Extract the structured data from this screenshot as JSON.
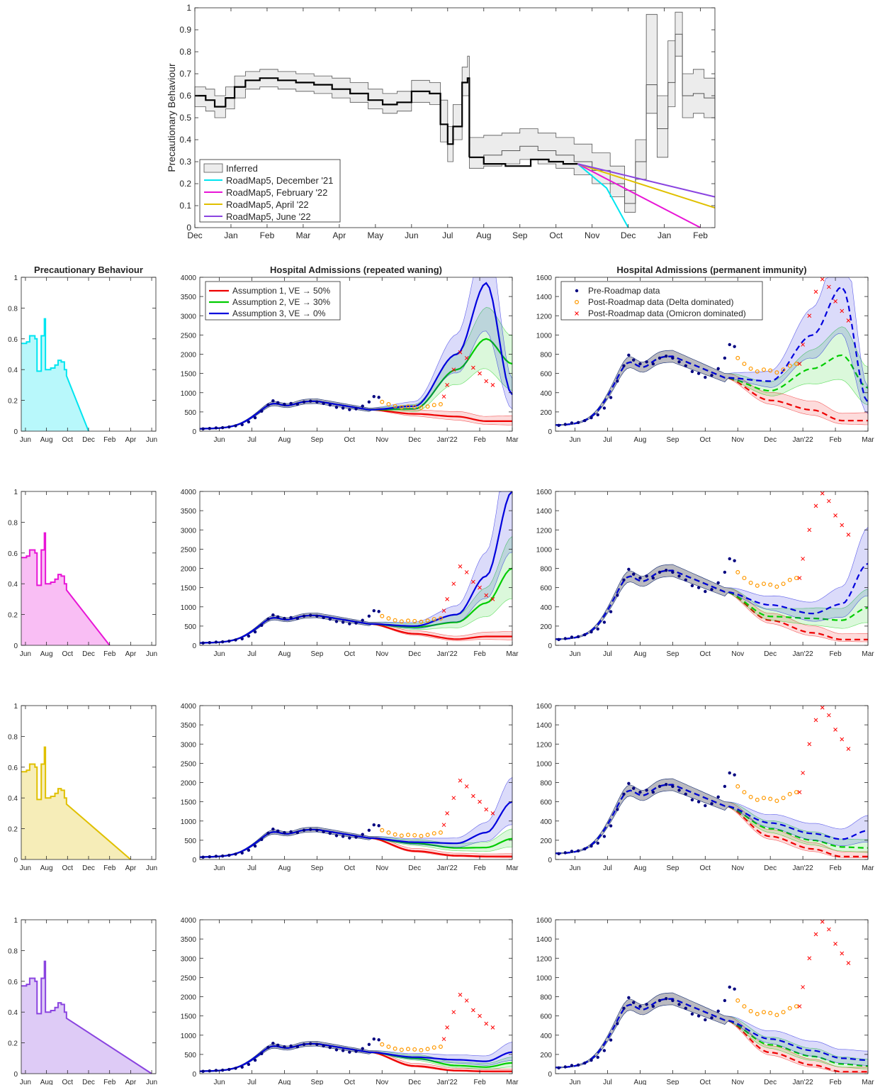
{
  "figure": {
    "colors": {
      "inferred": "#000000",
      "rm_dec": "#00e5f0",
      "rm_feb": "#e815d6",
      "rm_apr": "#e0c000",
      "rm_jun": "#8a44e0",
      "assumption1": "#ee0000",
      "assumption2": "#00cc00",
      "assumption3": "#0000dd",
      "pre_data": "#000080",
      "delta_data": "#ff9900",
      "omicron_data": "#ff0000"
    },
    "column_titles": {
      "behaviour": "Precautionary Behaviour",
      "waning": "Hospital Admissions (repeated waning)",
      "immunity": "Hospital Admissions (permanent immunity)"
    }
  },
  "chart_data": [
    {
      "type": "line",
      "id": "top",
      "ylabel": "Precautionary Behaviour",
      "xlabel": "",
      "ylim": [
        0,
        1
      ],
      "yticks": [
        0,
        0.1,
        0.2,
        0.3,
        0.4,
        0.5,
        0.6,
        0.7,
        0.8,
        0.9,
        1
      ],
      "xticks": [
        "Dec",
        "Jan",
        "Feb",
        "Mar",
        "Apr",
        "May",
        "Jun",
        "Jul",
        "Aug",
        "Sep",
        "Oct",
        "Nov",
        "Dec",
        "Jan",
        "Feb"
      ],
      "x_unit": "months since Dec 2020",
      "xlim": [
        0,
        14.4
      ],
      "legend": [
        "Inferred",
        "RoadMap5, December '21",
        "RoadMap5, February '22",
        "RoadMap5, April '22",
        "RoadMap5, June '22"
      ],
      "legend_position": "bottom-left",
      "inferred_median": [
        [
          0,
          0.6
        ],
        [
          0.3,
          0.58
        ],
        [
          0.55,
          0.55
        ],
        [
          0.85,
          0.59
        ],
        [
          1.1,
          0.64
        ],
        [
          1.4,
          0.67
        ],
        [
          1.8,
          0.68
        ],
        [
          2.3,
          0.67
        ],
        [
          2.8,
          0.66
        ],
        [
          3.3,
          0.65
        ],
        [
          3.8,
          0.63
        ],
        [
          4.3,
          0.61
        ],
        [
          4.8,
          0.58
        ],
        [
          5.2,
          0.56
        ],
        [
          5.6,
          0.57
        ],
        [
          6.0,
          0.62
        ],
        [
          6.5,
          0.61
        ],
        [
          6.8,
          0.47
        ],
        [
          7.0,
          0.38
        ],
        [
          7.15,
          0.46
        ],
        [
          7.4,
          0.66
        ],
        [
          7.55,
          0.68
        ],
        [
          7.6,
          0.32
        ],
        [
          8.0,
          0.33
        ],
        [
          8.5,
          0.35
        ],
        [
          9.0,
          0.37
        ],
        [
          9.5,
          0.35
        ],
        [
          10.0,
          0.33
        ],
        [
          10.5,
          0.3
        ],
        [
          11.0,
          0.26
        ],
        [
          11.5,
          0.2
        ],
        [
          11.9,
          0.11
        ],
        [
          12.2,
          0.3
        ],
        [
          12.5,
          0.65
        ],
        [
          12.8,
          0.45
        ],
        [
          13.1,
          0.66
        ],
        [
          13.3,
          0.88
        ],
        [
          13.5,
          0.6
        ],
        [
          13.8,
          0.61
        ],
        [
          14.1,
          0.59
        ],
        [
          14.4,
          0.58
        ]
      ],
      "inferred_lower": [
        [
          0,
          0.55
        ],
        [
          0.3,
          0.53
        ],
        [
          0.55,
          0.5
        ],
        [
          0.85,
          0.54
        ],
        [
          1.1,
          0.59
        ],
        [
          1.4,
          0.63
        ],
        [
          1.8,
          0.64
        ],
        [
          2.3,
          0.63
        ],
        [
          2.8,
          0.62
        ],
        [
          3.3,
          0.61
        ],
        [
          3.8,
          0.59
        ],
        [
          4.3,
          0.57
        ],
        [
          4.8,
          0.54
        ],
        [
          5.2,
          0.52
        ],
        [
          5.6,
          0.53
        ],
        [
          6.0,
          0.57
        ],
        [
          6.5,
          0.56
        ],
        [
          6.8,
          0.39
        ],
        [
          7.0,
          0.3
        ],
        [
          7.15,
          0.4
        ],
        [
          7.4,
          0.6
        ],
        [
          7.55,
          0.6
        ],
        [
          7.6,
          0.27
        ],
        [
          8.0,
          0.28
        ],
        [
          8.5,
          0.29
        ],
        [
          9.0,
          0.31
        ],
        [
          9.5,
          0.29
        ],
        [
          10.0,
          0.27
        ],
        [
          10.5,
          0.24
        ],
        [
          11.0,
          0.2
        ],
        [
          11.5,
          0.14
        ],
        [
          11.9,
          0.07
        ],
        [
          12.2,
          0.22
        ],
        [
          12.5,
          0.52
        ],
        [
          12.8,
          0.32
        ],
        [
          13.1,
          0.55
        ],
        [
          13.3,
          0.78
        ],
        [
          13.5,
          0.5
        ],
        [
          13.8,
          0.52
        ],
        [
          14.1,
          0.5
        ],
        [
          14.4,
          0.49
        ]
      ],
      "inferred_upper": [
        [
          0,
          0.64
        ],
        [
          0.3,
          0.63
        ],
        [
          0.55,
          0.6
        ],
        [
          0.85,
          0.64
        ],
        [
          1.1,
          0.69
        ],
        [
          1.4,
          0.71
        ],
        [
          1.8,
          0.72
        ],
        [
          2.3,
          0.71
        ],
        [
          2.8,
          0.7
        ],
        [
          3.3,
          0.69
        ],
        [
          3.8,
          0.68
        ],
        [
          4.3,
          0.66
        ],
        [
          4.8,
          0.63
        ],
        [
          5.2,
          0.61
        ],
        [
          5.6,
          0.62
        ],
        [
          6.0,
          0.67
        ],
        [
          6.5,
          0.66
        ],
        [
          6.8,
          0.58
        ],
        [
          7.0,
          0.46
        ],
        [
          7.15,
          0.56
        ],
        [
          7.4,
          0.73
        ],
        [
          7.55,
          0.78
        ],
        [
          7.6,
          0.41
        ],
        [
          8.0,
          0.42
        ],
        [
          8.5,
          0.43
        ],
        [
          9.0,
          0.45
        ],
        [
          9.5,
          0.43
        ],
        [
          10.0,
          0.41
        ],
        [
          10.5,
          0.38
        ],
        [
          11.0,
          0.34
        ],
        [
          11.5,
          0.28
        ],
        [
          11.9,
          0.17
        ],
        [
          12.2,
          0.4
        ],
        [
          12.5,
          0.97
        ],
        [
          12.8,
          0.6
        ],
        [
          13.1,
          0.85
        ],
        [
          13.3,
          0.98
        ],
        [
          13.5,
          0.7
        ],
        [
          13.8,
          0.72
        ],
        [
          14.1,
          0.68
        ],
        [
          14.4,
          0.66
        ]
      ],
      "roadmap_fit": [
        [
          7.6,
          0.32
        ],
        [
          8.0,
          0.29
        ],
        [
          8.6,
          0.28
        ],
        [
          9.3,
          0.31
        ],
        [
          9.8,
          0.3
        ],
        [
          10.2,
          0.29
        ],
        [
          10.6,
          0.29
        ]
      ],
      "roadmap_lines": [
        {
          "name": "RoadMap5, December '21",
          "points": [
            [
              10.6,
              0.29
            ],
            [
              11.4,
              0.18
            ],
            [
              12.0,
              0.0
            ]
          ]
        },
        {
          "name": "RoadMap5, February '22",
          "points": [
            [
              10.6,
              0.29
            ],
            [
              14.0,
              0.0
            ]
          ]
        },
        {
          "name": "RoadMap5, April '22",
          "points": [
            [
              10.6,
              0.29
            ],
            [
              14.4,
              0.09
            ]
          ]
        },
        {
          "name": "RoadMap5, June '22",
          "points": [
            [
              10.6,
              0.29
            ],
            [
              14.4,
              0.14
            ]
          ]
        }
      ]
    },
    {
      "type": "area",
      "id": "beh",
      "title": "Precautionary Behaviour",
      "ylim": [
        0,
        1
      ],
      "yticks": [
        0,
        0.2,
        0.4,
        0.6,
        0.8,
        1
      ],
      "xticks": [
        "Jun",
        "Aug",
        "Oct",
        "Dec",
        "Feb",
        "Apr",
        "Jun"
      ],
      "x_unit": "months since Jun 2021",
      "xlim": [
        -0.4,
        12.4
      ],
      "history": [
        [
          -0.4,
          0.57
        ],
        [
          0.1,
          0.58
        ],
        [
          0.4,
          0.62
        ],
        [
          0.9,
          0.6
        ],
        [
          1.1,
          0.39
        ],
        [
          1.5,
          0.62
        ],
        [
          1.8,
          0.73
        ],
        [
          1.9,
          0.4
        ],
        [
          2.4,
          0.41
        ],
        [
          2.8,
          0.43
        ],
        [
          3.1,
          0.46
        ],
        [
          3.4,
          0.45
        ],
        [
          3.7,
          0.4
        ],
        [
          3.9,
          0.36
        ]
      ],
      "scenarios": [
        {
          "name": "RoadMap5, December '21",
          "end": 6.0
        },
        {
          "name": "RoadMap5, February '22",
          "end": 8.0
        },
        {
          "name": "RoadMap5, April '22",
          "end": 10.0
        },
        {
          "name": "RoadMap5, June '22",
          "end": 12.0
        }
      ]
    },
    {
      "type": "line",
      "id": "hosp",
      "titles": [
        "Hospital Admissions (repeated waning)",
        "Hospital Admissions (permanent immunity)"
      ],
      "xticks": [
        "Jun",
        "Jul",
        "Aug",
        "Sep",
        "Oct",
        "Nov",
        "Dec",
        "Jan'22",
        "Feb",
        "Mar"
      ],
      "x_unit": "months since 1 Jun 2021",
      "xlim": [
        -0.6,
        9.0
      ],
      "waning_ylim": [
        0,
        4000
      ],
      "waning_yticks": [
        0,
        500,
        1000,
        1500,
        2000,
        2500,
        3000,
        3500,
        4000
      ],
      "immunity_ylim": [
        0,
        1600
      ],
      "immunity_yticks": [
        0,
        200,
        400,
        600,
        800,
        1000,
        1200,
        1400,
        1600
      ],
      "legend_waning": [
        "Assumption 1, VE → 50%",
        "Assumption 2, VE → 30%",
        "Assumption 3, VE → 0%"
      ],
      "legend_immunity": [
        "Pre-Roadmap data",
        "Post-Roadmap data (Delta dominated)",
        "Post-Roadmap data (Omicron dominated)"
      ],
      "legend_position": "top-left",
      "waning_projections": [
        {
          "a1": [
            450,
            380,
            260
          ],
          "a2": [
            580,
            1600,
            2400,
            1750
          ],
          "a3": [
            650,
            2000,
            3850,
            950
          ]
        },
        {
          "a1": [
            300,
            160,
            230
          ],
          "a2": [
            470,
            600,
            1100,
            2000
          ],
          "a3": [
            500,
            800,
            1800,
            4000
          ]
        },
        {
          "a1": [
            220,
            100,
            80
          ],
          "a2": [
            420,
            300,
            310,
            540
          ],
          "a3": [
            450,
            420,
            700,
            1500
          ]
        },
        {
          "a1": [
            200,
            80,
            60
          ],
          "a2": [
            400,
            210,
            170,
            280
          ],
          "a3": [
            430,
            360,
            320,
            560
          ]
        }
      ],
      "immunity_projections": [
        {
          "a1": [
            320,
            220,
            110
          ],
          "a2": [
            420,
            650,
            790,
            450
          ],
          "a3": [
            520,
            1000,
            1500,
            300
          ]
        },
        {
          "a1": [
            260,
            130,
            60
          ],
          "a2": [
            300,
            280,
            260,
            390
          ],
          "a3": [
            420,
            330,
            430,
            850
          ]
        },
        {
          "a1": [
            240,
            110,
            30
          ],
          "a2": [
            320,
            200,
            130,
            120
          ],
          "a3": [
            380,
            270,
            210,
            300
          ]
        },
        {
          "a1": [
            220,
            90,
            20
          ],
          "a2": [
            300,
            180,
            100,
            80
          ],
          "a3": [
            360,
            240,
            160,
            140
          ]
        }
      ],
      "pre_roadmap_data": [
        [
          -0.5,
          60
        ],
        [
          -0.3,
          70
        ],
        [
          -0.1,
          85
        ],
        [
          0.1,
          90
        ],
        [
          0.3,
          110
        ],
        [
          0.5,
          140
        ],
        [
          0.7,
          170
        ],
        [
          0.9,
          240
        ],
        [
          1.1,
          350
        ],
        [
          1.3,
          520
        ],
        [
          1.5,
          680
        ],
        [
          1.65,
          790
        ],
        [
          1.8,
          740
        ],
        [
          2.0,
          700
        ],
        [
          2.2,
          720
        ],
        [
          2.4,
          700
        ],
        [
          2.6,
          760
        ],
        [
          2.8,
          780
        ],
        [
          3.0,
          760
        ],
        [
          3.2,
          720
        ],
        [
          3.4,
          680
        ],
        [
          3.6,
          620
        ],
        [
          3.8,
          600
        ],
        [
          4.0,
          560
        ],
        [
          4.2,
          580
        ],
        [
          4.4,
          650
        ],
        [
          4.6,
          760
        ],
        [
          4.75,
          900
        ],
        [
          4.9,
          880
        ]
      ],
      "delta_data": [
        [
          5.0,
          760
        ],
        [
          5.2,
          700
        ],
        [
          5.4,
          650
        ],
        [
          5.6,
          620
        ],
        [
          5.8,
          640
        ],
        [
          6.0,
          630
        ],
        [
          6.2,
          610
        ],
        [
          6.4,
          640
        ],
        [
          6.6,
          680
        ],
        [
          6.8,
          700
        ]
      ],
      "omicron_data": [
        [
          6.9,
          900
        ],
        [
          7.0,
          1200
        ],
        [
          7.2,
          1600
        ],
        [
          7.4,
          2050
        ],
        [
          7.6,
          1900
        ],
        [
          7.8,
          1650
        ],
        [
          8.0,
          1500
        ],
        [
          8.2,
          1300
        ],
        [
          8.4,
          1200
        ]
      ],
      "omicron_data_immunity": [
        [
          6.9,
          700
        ],
        [
          7.0,
          900
        ],
        [
          7.2,
          1200
        ],
        [
          7.4,
          1450
        ],
        [
          7.6,
          1580
        ],
        [
          7.8,
          1500
        ],
        [
          8.0,
          1350
        ],
        [
          8.2,
          1250
        ],
        [
          8.4,
          1150
        ]
      ]
    }
  ]
}
